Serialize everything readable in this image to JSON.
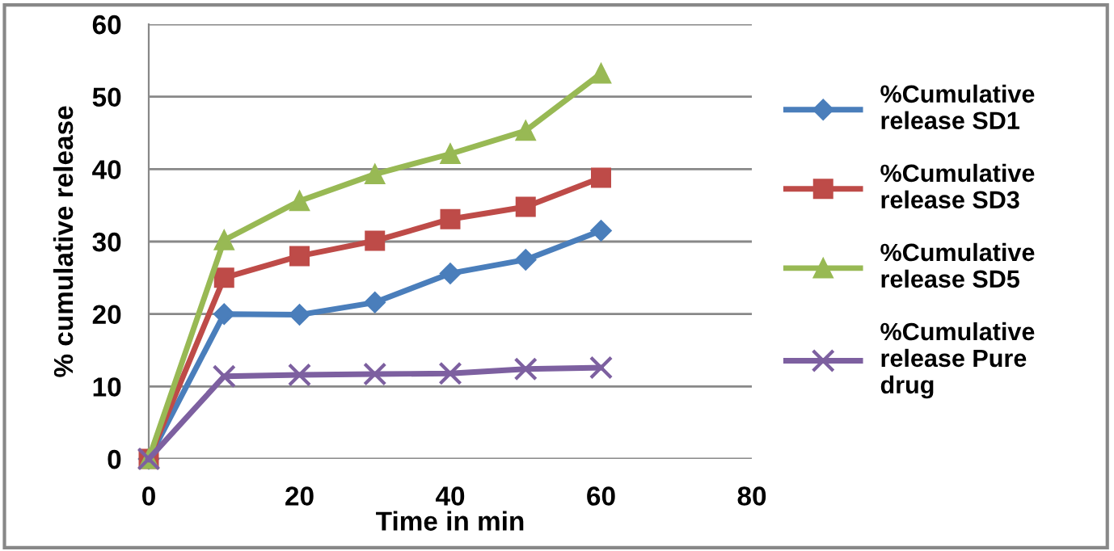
{
  "chart_data": {
    "type": "line",
    "xlabel": "Time in min",
    "ylabel": "% cumulative release",
    "x": [
      0,
      10,
      20,
      30,
      40,
      50,
      60
    ],
    "series": [
      {
        "name": "%Cumulative release SD1",
        "color": "#4a7ebb",
        "marker": "diamond",
        "values": [
          0,
          20,
          19.9,
          21.6,
          25.6,
          27.5,
          31.5
        ]
      },
      {
        "name": "%Cumulative release SD3",
        "color": "#be4b48",
        "marker": "square",
        "values": [
          0,
          25,
          28,
          30.1,
          33.1,
          34.8,
          38.8
        ]
      },
      {
        "name": "%Cumulative release SD5",
        "color": "#98b954",
        "marker": "triangle",
        "values": [
          0,
          30.2,
          35.6,
          39.3,
          42.1,
          45.3,
          53.2
        ]
      },
      {
        "name": "%Cumulative release Pure drug",
        "color": "#7d60a0",
        "marker": "cross",
        "values": [
          0,
          11.4,
          11.6,
          11.7,
          11.8,
          12.4,
          12.6
        ]
      }
    ],
    "xlim": [
      0,
      80
    ],
    "xticks": [
      0,
      20,
      40,
      60,
      80
    ],
    "ylim": [
      0,
      60
    ],
    "yticks": [
      0,
      10,
      20,
      30,
      40,
      50,
      60
    ],
    "grid": "y",
    "legend": "right",
    "line_style": "solid"
  }
}
